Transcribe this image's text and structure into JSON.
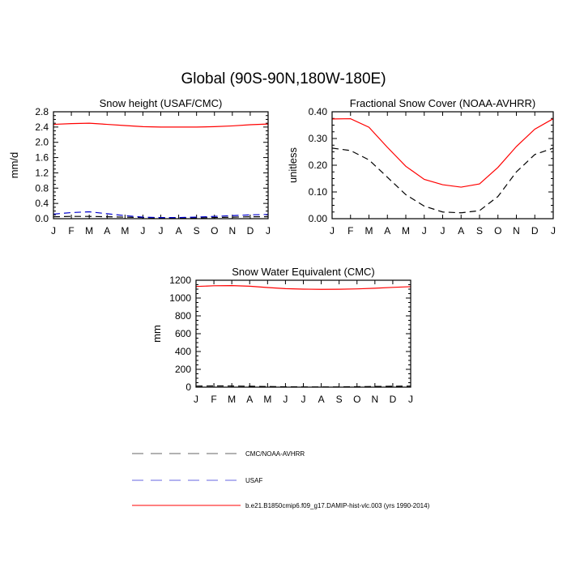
{
  "suptitle": "Global (90S-90N,180W-180E)",
  "months": [
    "J",
    "F",
    "M",
    "A",
    "M",
    "J",
    "J",
    "A",
    "S",
    "O",
    "N",
    "D",
    "J"
  ],
  "chart_data": [
    {
      "type": "line",
      "title": "Snow height (USAF/CMC)",
      "xlabel": "",
      "ylabel": "mm/d",
      "ylim": [
        0,
        2.8
      ],
      "yticks": [
        0.0,
        0.4,
        0.8,
        1.2,
        1.6,
        2.0,
        2.4,
        2.8
      ],
      "ytick_labels": [
        "0.0",
        "0.4",
        "0.8",
        "1.2",
        "1.6",
        "2.0",
        "2.4",
        "2.8"
      ],
      "series": [
        {
          "name": "b.e21.B1850cmip6.f09_g17.DAMIP-hist-vlc.003 (yrs 1990-2014)",
          "color": "#ff0000",
          "style": "solid",
          "values": [
            2.47,
            2.49,
            2.5,
            2.47,
            2.44,
            2.41,
            2.4,
            2.4,
            2.4,
            2.41,
            2.43,
            2.46,
            2.48
          ]
        },
        {
          "name": "USAF",
          "color": "#0000cc",
          "style": "dashed",
          "values": [
            0.12,
            0.16,
            0.18,
            0.13,
            0.08,
            0.04,
            0.03,
            0.03,
            0.04,
            0.06,
            0.08,
            0.1,
            0.11
          ]
        },
        {
          "name": "CMC/NOAA-AVHRR",
          "color": "#000000",
          "style": "dashed",
          "values": [
            0.05,
            0.06,
            0.06,
            0.05,
            0.04,
            0.03,
            0.02,
            0.02,
            0.02,
            0.03,
            0.04,
            0.05,
            0.05
          ]
        }
      ]
    },
    {
      "type": "line",
      "title": "Fractional Snow Cover (NOAA-AVHRR)",
      "xlabel": "",
      "ylabel": "unitless",
      "ylim": [
        0,
        0.4
      ],
      "yticks": [
        0.0,
        0.1,
        0.2,
        0.3,
        0.4
      ],
      "ytick_labels": [
        "0.00",
        "0.10",
        "0.20",
        "0.30",
        "0.40"
      ],
      "series": [
        {
          "name": "b.e21.B1850cmip6.f09_g17.DAMIP-hist-vlc.003 (yrs 1990-2014)",
          "color": "#ff0000",
          "style": "solid",
          "values": [
            0.373,
            0.374,
            0.342,
            0.267,
            0.196,
            0.147,
            0.127,
            0.118,
            0.13,
            0.192,
            0.27,
            0.335,
            0.374
          ]
        },
        {
          "name": "CMC/NOAA-AVHRR",
          "color": "#000000",
          "style": "dashed",
          "values": [
            0.264,
            0.255,
            0.22,
            0.155,
            0.09,
            0.047,
            0.025,
            0.022,
            0.03,
            0.083,
            0.175,
            0.24,
            0.264
          ]
        }
      ]
    },
    {
      "type": "line",
      "title": "Snow Water Equivalent (CMC)",
      "xlabel": "",
      "ylabel": "mm",
      "ylim": [
        0,
        1200
      ],
      "yticks": [
        0,
        200,
        400,
        600,
        800,
        1000,
        1200
      ],
      "ytick_labels": [
        "0",
        "200",
        "400",
        "600",
        "800",
        "1000",
        "1200"
      ],
      "series": [
        {
          "name": "b.e21.B1850cmip6.f09_g17.DAMIP-hist-vlc.003 (yrs 1990-2014)",
          "color": "#ff0000",
          "style": "solid",
          "values": [
            1130,
            1138,
            1140,
            1133,
            1118,
            1106,
            1100,
            1098,
            1099,
            1103,
            1110,
            1120,
            1128
          ]
        },
        {
          "name": "CMC/NOAA-AVHRR",
          "color": "#000000",
          "style": "dashed",
          "values": [
            12,
            14,
            13,
            10,
            7,
            4,
            3,
            2,
            3,
            5,
            8,
            10,
            12
          ]
        }
      ]
    }
  ],
  "legend": {
    "placement": "bottom",
    "entries": [
      {
        "label": "CMC/NOAA-AVHRR",
        "color": "#000000",
        "style": "dashed"
      },
      {
        "label": "USAF",
        "color": "#0000cc",
        "style": "dashed"
      },
      {
        "label": "b.e21.B1850cmip6.f09_g17.DAMIP-hist-vlc.003 (yrs 1990-2014)",
        "color": "#ff0000",
        "style": "solid"
      }
    ]
  }
}
